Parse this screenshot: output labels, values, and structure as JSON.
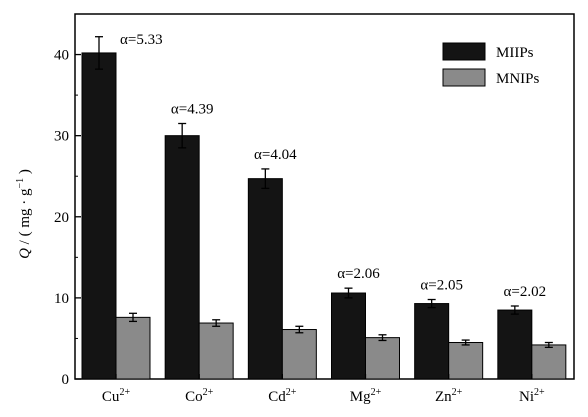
{
  "chart_data": {
    "type": "bar",
    "categories": [
      "Cu",
      "Co",
      "Cd",
      "Mg",
      "Zn",
      "Ni"
    ],
    "category_superscript": "2+",
    "series": [
      {
        "name": "MIIPs",
        "color": "#141414",
        "values": [
          40.2,
          30.0,
          24.7,
          10.6,
          9.3,
          8.5
        ],
        "errors": [
          2.0,
          1.5,
          1.2,
          0.6,
          0.5,
          0.5
        ]
      },
      {
        "name": "MNIPs",
        "color": "#8a8a8a",
        "values": [
          7.6,
          6.9,
          6.1,
          5.1,
          4.5,
          4.2
        ],
        "errors": [
          0.5,
          0.4,
          0.4,
          0.35,
          0.3,
          0.3
        ]
      }
    ],
    "annotations": [
      "α=5.33",
      "α=4.39",
      "α=4.04",
      "α=2.06",
      "α=2.05",
      "α=2.02"
    ],
    "ylabel": {
      "symbol": "Q",
      "rest": " / ( mg · g",
      "exponent": "−1",
      "close": " )"
    },
    "xlabel": "",
    "ylim": [
      0,
      45
    ],
    "yticks": [
      0,
      10,
      20,
      30,
      40
    ],
    "grid": false,
    "legend_position": "top-right"
  }
}
